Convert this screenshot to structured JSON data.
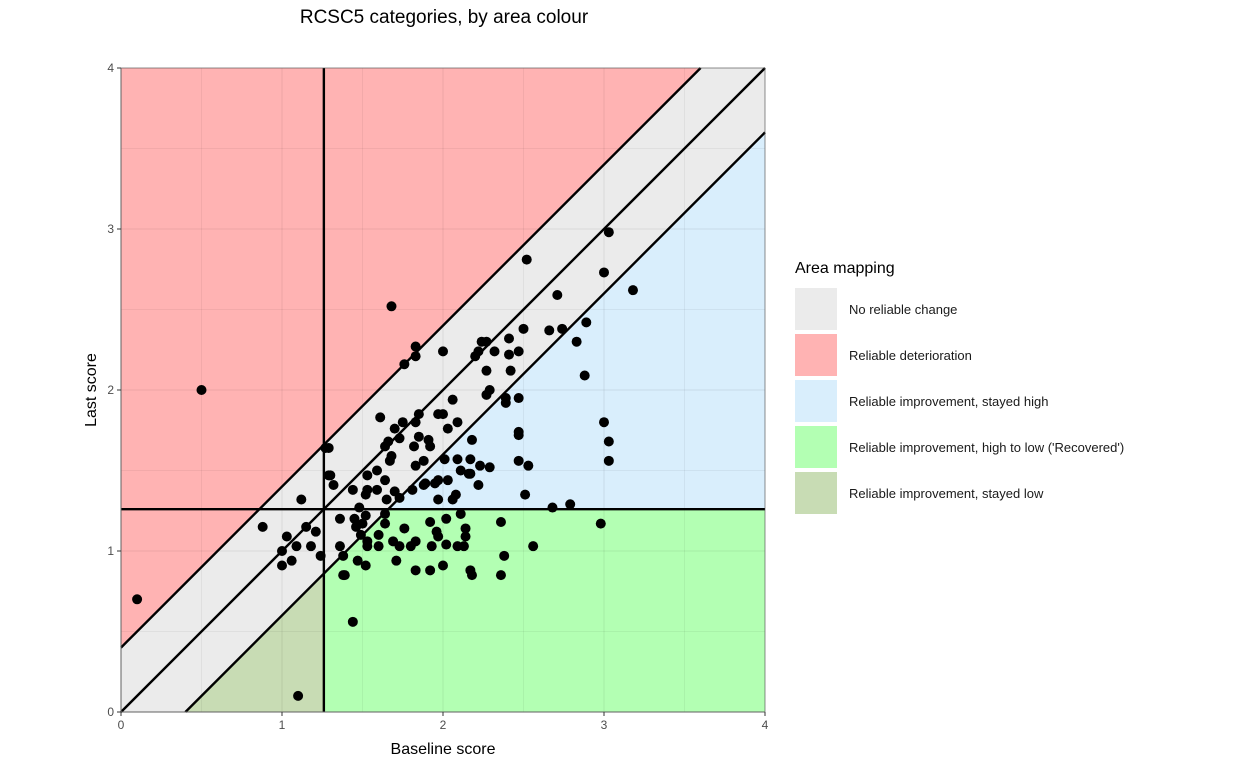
{
  "chart_data": {
    "type": "scatter",
    "title": "RCSC5 categories, by area colour",
    "xlabel": "Baseline score",
    "ylabel": "Last score",
    "xlim": [
      0,
      4
    ],
    "ylim": [
      0,
      4
    ],
    "xticks": [
      "0",
      "1",
      "2",
      "3",
      "4"
    ],
    "yticks": [
      "0",
      "1",
      "2",
      "3",
      "4"
    ],
    "grid": true,
    "cutoff": 1.26,
    "reliable_change_band": 0.4,
    "legend": {
      "title": "Area mapping",
      "placement": "right",
      "entries": [
        {
          "label": "No reliable change",
          "color": "#EBEBEB"
        },
        {
          "label": "Reliable deterioration",
          "color": "#FFB3B3"
        },
        {
          "label": "Reliable improvement, stayed high",
          "color": "#D9EEFC"
        },
        {
          "label": "Reliable improvement, high to low ('Recovered')",
          "color": "#B3FFB3"
        },
        {
          "label": "Reliable improvement, stayed low",
          "color": "#C8DCB4"
        }
      ]
    },
    "points": [
      [
        0.1,
        0.7
      ],
      [
        0.5,
        2.0
      ],
      [
        1.68,
        2.52
      ],
      [
        1.1,
        0.1
      ],
      [
        1.44,
        0.56
      ],
      [
        2.52,
        2.81
      ],
      [
        3.03,
        2.98
      ],
      [
        3.0,
        2.73
      ],
      [
        3.18,
        2.62
      ],
      [
        2.71,
        2.59
      ],
      [
        2.89,
        2.42
      ],
      [
        2.74,
        2.38
      ],
      [
        2.66,
        2.37
      ],
      [
        2.5,
        2.38
      ],
      [
        2.83,
        2.3
      ],
      [
        2.88,
        2.09
      ],
      [
        3.0,
        1.8
      ],
      [
        3.03,
        1.68
      ],
      [
        3.03,
        1.56
      ],
      [
        2.79,
        1.29
      ],
      [
        2.68,
        1.27
      ],
      [
        2.98,
        1.17
      ],
      [
        2.56,
        1.03
      ],
      [
        2.38,
        0.97
      ],
      [
        2.36,
        0.85
      ],
      [
        2.36,
        1.18
      ],
      [
        2.51,
        1.35
      ],
      [
        2.53,
        1.53
      ],
      [
        2.47,
        1.56
      ],
      [
        2.47,
        1.72
      ],
      [
        2.47,
        1.74
      ],
      [
        2.47,
        1.95
      ],
      [
        2.39,
        1.95
      ],
      [
        2.39,
        1.92
      ],
      [
        2.41,
        2.22
      ],
      [
        2.41,
        2.32
      ],
      [
        2.47,
        2.24
      ],
      [
        2.42,
        2.12
      ],
      [
        2.29,
        2.0
      ],
      [
        2.27,
        1.97
      ],
      [
        2.27,
        2.12
      ],
      [
        2.24,
        2.3
      ],
      [
        2.27,
        2.3
      ],
      [
        2.32,
        2.24
      ],
      [
        2.22,
        2.24
      ],
      [
        2.2,
        2.21
      ],
      [
        2.0,
        2.24
      ],
      [
        2.09,
        1.8
      ],
      [
        2.06,
        1.94
      ],
      [
        2.03,
        1.76
      ],
      [
        1.97,
        1.85
      ],
      [
        2.0,
        1.85
      ],
      [
        1.85,
        1.85
      ],
      [
        1.83,
        1.8
      ],
      [
        1.75,
        1.8
      ],
      [
        1.7,
        1.76
      ],
      [
        1.61,
        1.83
      ],
      [
        1.76,
        2.16
      ],
      [
        1.83,
        2.27
      ],
      [
        1.83,
        2.21
      ],
      [
        1.29,
        1.64
      ],
      [
        1.29,
        1.47
      ],
      [
        1.32,
        1.41
      ],
      [
        1.12,
        1.32
      ],
      [
        0.88,
        1.15
      ],
      [
        1.03,
        1.09
      ],
      [
        1.0,
        1.0
      ],
      [
        1.0,
        0.91
      ],
      [
        1.06,
        0.94
      ],
      [
        1.09,
        1.03
      ],
      [
        1.15,
        1.15
      ],
      [
        1.21,
        1.12
      ],
      [
        1.18,
        1.03
      ],
      [
        1.24,
        0.97
      ],
      [
        1.36,
        1.03
      ],
      [
        1.38,
        0.97
      ],
      [
        1.38,
        0.85
      ],
      [
        1.36,
        1.2
      ],
      [
        1.44,
        1.38
      ],
      [
        1.46,
        1.15
      ],
      [
        1.45,
        1.2
      ],
      [
        1.48,
        1.27
      ],
      [
        1.52,
        1.35
      ],
      [
        1.53,
        1.38
      ],
      [
        1.53,
        1.47
      ],
      [
        1.59,
        1.5
      ],
      [
        1.59,
        1.38
      ],
      [
        1.64,
        1.44
      ],
      [
        1.64,
        1.23
      ],
      [
        1.65,
        1.32
      ],
      [
        1.7,
        1.37
      ],
      [
        1.73,
        1.33
      ],
      [
        1.67,
        1.56
      ],
      [
        1.68,
        1.59
      ],
      [
        1.66,
        1.68
      ],
      [
        1.64,
        1.65
      ],
      [
        1.73,
        1.7
      ],
      [
        1.82,
        1.65
      ],
      [
        1.83,
        1.53
      ],
      [
        1.88,
        1.56
      ],
      [
        1.92,
        1.65
      ],
      [
        1.91,
        1.69
      ],
      [
        1.85,
        1.71
      ],
      [
        1.95,
        1.42
      ],
      [
        1.97,
        1.44
      ],
      [
        1.88,
        1.41
      ],
      [
        2.03,
        1.44
      ],
      [
        2.08,
        1.35
      ],
      [
        2.06,
        1.32
      ],
      [
        1.97,
        1.32
      ],
      [
        1.89,
        1.42
      ],
      [
        1.81,
        1.38
      ],
      [
        2.01,
        1.57
      ],
      [
        2.09,
        1.57
      ],
      [
        2.17,
        1.57
      ],
      [
        2.11,
        1.5
      ],
      [
        2.16,
        1.48
      ],
      [
        2.18,
        1.69
      ],
      [
        2.17,
        1.48
      ],
      [
        2.23,
        1.53
      ],
      [
        2.29,
        1.52
      ],
      [
        2.22,
        1.41
      ],
      [
        2.11,
        1.23
      ],
      [
        2.02,
        1.2
      ],
      [
        1.92,
        1.18
      ],
      [
        1.96,
        1.12
      ],
      [
        1.97,
        1.09
      ],
      [
        1.93,
        1.03
      ],
      [
        2.02,
        1.04
      ],
      [
        2.09,
        1.03
      ],
      [
        2.13,
        1.03
      ],
      [
        2.14,
        1.14
      ],
      [
        2.14,
        1.09
      ],
      [
        2.17,
        0.88
      ],
      [
        2.18,
        0.85
      ],
      [
        2.0,
        0.91
      ],
      [
        1.92,
        0.88
      ],
      [
        1.83,
        0.88
      ],
      [
        1.8,
        1.03
      ],
      [
        1.83,
        1.06
      ],
      [
        1.73,
        1.03
      ],
      [
        1.69,
        1.06
      ],
      [
        1.71,
        0.94
      ],
      [
        1.76,
        1.14
      ],
      [
        1.64,
        1.17
      ],
      [
        1.6,
        1.1
      ],
      [
        1.6,
        1.03
      ],
      [
        1.53,
        1.03
      ],
      [
        1.52,
        0.91
      ],
      [
        1.47,
        0.94
      ],
      [
        1.49,
        1.1
      ],
      [
        1.5,
        1.17
      ],
      [
        1.52,
        1.22
      ],
      [
        1.53,
        1.06
      ],
      [
        1.39,
        0.85
      ],
      [
        1.27,
        1.64
      ],
      [
        1.3,
        1.47
      ]
    ]
  }
}
